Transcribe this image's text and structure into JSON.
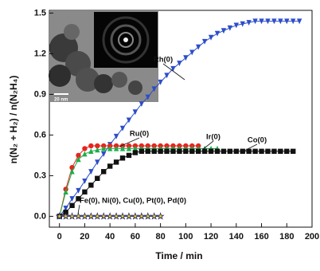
{
  "chart_data": {
    "type": "line",
    "xlabel": "Time / min",
    "ylabel": "n(N₂ + H₂) / n(N₂H₄)",
    "inset_label": "20 nm",
    "xlim": [
      -8,
      200
    ],
    "ylim": [
      -0.08,
      1.52
    ],
    "xticks": [
      0,
      20,
      40,
      60,
      80,
      100,
      120,
      140,
      160,
      180,
      200
    ],
    "yticks": [
      {
        "value": 0,
        "label": "0.0"
      },
      0.3,
      0.6,
      0.9,
      1.2,
      1.5
    ],
    "series": [
      {
        "name": "Rh(0)",
        "color": "#2c4ec9",
        "marker": "triangle-down",
        "x": [
          0,
          5,
          10,
          15,
          20,
          25,
          30,
          35,
          40,
          45,
          50,
          55,
          60,
          65,
          70,
          75,
          80,
          85,
          90,
          95,
          100,
          105,
          110,
          115,
          120,
          125,
          130,
          135,
          140,
          145,
          150,
          155,
          160,
          165,
          170,
          175,
          180,
          185,
          190
        ],
        "values": [
          0,
          0.06,
          0.13,
          0.19,
          0.26,
          0.33,
          0.4,
          0.46,
          0.53,
          0.59,
          0.65,
          0.71,
          0.77,
          0.83,
          0.88,
          0.94,
          0.99,
          1.04,
          1.09,
          1.13,
          1.17,
          1.21,
          1.25,
          1.29,
          1.32,
          1.35,
          1.37,
          1.39,
          1.41,
          1.42,
          1.43,
          1.44,
          1.44,
          1.44,
          1.44,
          1.44,
          1.44,
          1.44,
          1.44
        ]
      },
      {
        "name": "Ru(0)",
        "color": "#e8241e",
        "marker": "circle",
        "x": [
          0,
          5,
          10,
          15,
          20,
          25,
          30,
          35,
          40,
          45,
          50,
          55,
          60,
          65,
          70,
          75,
          80,
          85,
          90,
          95,
          100,
          105,
          110
        ],
        "values": [
          0,
          0.2,
          0.36,
          0.45,
          0.5,
          0.52,
          0.52,
          0.52,
          0.52,
          0.52,
          0.52,
          0.52,
          0.52,
          0.52,
          0.52,
          0.52,
          0.52,
          0.52,
          0.52,
          0.52,
          0.52,
          0.52,
          0.52
        ]
      },
      {
        "name": "Ir(0)",
        "color": "#1fae4a",
        "marker": "triangle-up",
        "x": [
          0,
          5,
          10,
          15,
          20,
          25,
          30,
          35,
          40,
          45,
          50,
          55,
          60,
          65,
          70,
          75,
          80,
          85,
          90,
          95,
          100,
          105,
          110,
          115,
          120,
          125
        ],
        "values": [
          0,
          0.18,
          0.33,
          0.42,
          0.46,
          0.48,
          0.49,
          0.5,
          0.5,
          0.5,
          0.5,
          0.5,
          0.5,
          0.5,
          0.5,
          0.5,
          0.5,
          0.5,
          0.5,
          0.5,
          0.5,
          0.5,
          0.5,
          0.5,
          0.5,
          0.5
        ]
      },
      {
        "name": "Co(0)",
        "color": "#111111",
        "marker": "square",
        "x": [
          0,
          5,
          10,
          15,
          20,
          25,
          30,
          35,
          40,
          45,
          50,
          55,
          60,
          65,
          70,
          75,
          80,
          85,
          90,
          95,
          100,
          105,
          110,
          115,
          120,
          125,
          130,
          135,
          140,
          145,
          150,
          155,
          160,
          165,
          170,
          175,
          180,
          185
        ],
        "values": [
          0,
          0.03,
          0.08,
          0.13,
          0.18,
          0.23,
          0.28,
          0.33,
          0.37,
          0.4,
          0.43,
          0.45,
          0.47,
          0.48,
          0.48,
          0.48,
          0.48,
          0.48,
          0.48,
          0.48,
          0.48,
          0.48,
          0.48,
          0.48,
          0.48,
          0.48,
          0.48,
          0.48,
          0.48,
          0.48,
          0.48,
          0.48,
          0.48,
          0.48,
          0.48,
          0.48,
          0.48,
          0.48
        ]
      },
      {
        "name": "Fe(0), Ni(0), Cu(0), Pt(0), Pd(0)",
        "color": "#2a2a6e",
        "marker": "star",
        "x": [
          0,
          5,
          10,
          15,
          20,
          25,
          30,
          35,
          40,
          45,
          50,
          55,
          60,
          65,
          70,
          75,
          80
        ],
        "values": [
          0,
          0,
          0,
          0,
          0,
          0,
          0,
          0,
          0,
          0,
          0,
          0,
          0,
          0,
          0,
          0,
          0
        ]
      }
    ]
  }
}
